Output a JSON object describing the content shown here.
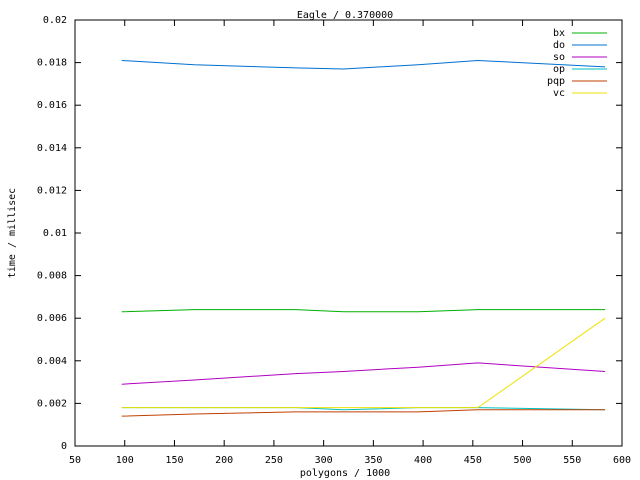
{
  "chart_data": {
    "type": "line",
    "title": "Eagle / 0.370000",
    "x_label": "polygons / 1000",
    "y_label": "time / millisec",
    "x": [
      97,
      170,
      272,
      320,
      395,
      455,
      583
    ],
    "series": [
      {
        "name": "bx",
        "color": "#00b000",
        "values": [
          0.0063,
          0.0064,
          0.0064,
          0.0063,
          0.0063,
          0.0064,
          0.0064
        ]
      },
      {
        "name": "do",
        "color": "#0070d0",
        "values": [
          0.0181,
          0.0179,
          0.01775,
          0.0177,
          0.0179,
          0.0181,
          0.0178
        ]
      },
      {
        "name": "so",
        "color": "#b000c0",
        "values": [
          0.0029,
          0.0031,
          0.0034,
          0.0035,
          0.0037,
          0.0039,
          0.0035
        ]
      },
      {
        "name": "op",
        "color": "#00c0c0",
        "values": [
          0.0018,
          0.0018,
          0.0018,
          0.0017,
          0.0018,
          0.0018,
          0.0017
        ]
      },
      {
        "name": "pqp",
        "color": "#c04000",
        "values": [
          0.0014,
          0.0015,
          0.0016,
          0.0016,
          0.0016,
          0.0017,
          0.0017
        ]
      },
      {
        "name": "vc",
        "color": "#f0e000",
        "values": [
          0.0018,
          0.0018,
          0.0018,
          0.0018,
          0.0018,
          0.0018,
          0.006
        ]
      }
    ],
    "xlim": [
      50,
      600
    ],
    "xticks": [
      50,
      100,
      150,
      200,
      250,
      300,
      350,
      400,
      450,
      500,
      550,
      600
    ],
    "ylim": [
      0,
      0.02
    ],
    "yticks": [
      0,
      0.002,
      0.004,
      0.006,
      0.008,
      0.01,
      0.012,
      0.014,
      0.016,
      0.018,
      0.02
    ],
    "legend": "top-right"
  }
}
